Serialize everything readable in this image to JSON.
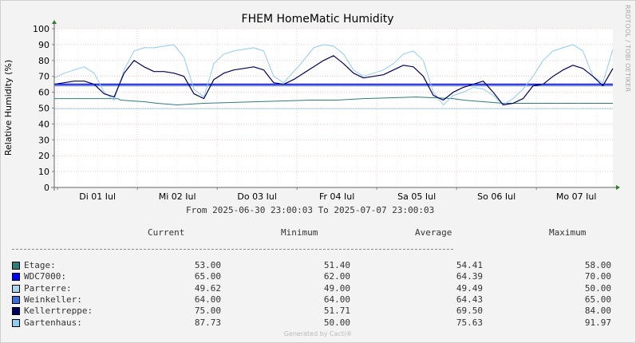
{
  "chart_data": {
    "type": "line",
    "title": "FHEM HomeMatic Humidity",
    "ylabel": "Relative Humidity (%)",
    "xlabel": "",
    "ylim": [
      0,
      100
    ],
    "yticks": [
      0,
      10,
      20,
      30,
      40,
      50,
      60,
      70,
      80,
      90,
      100
    ],
    "xlim": [
      "2025-06-30 23:00",
      "2025-07-07 23:00"
    ],
    "day_labels": [
      {
        "t": "2025-07-01 12:00",
        "label": "Di 01 Jul"
      },
      {
        "t": "2025-07-02 12:00",
        "label": "Mi 02 Jul"
      },
      {
        "t": "2025-07-03 12:00",
        "label": "Do 03 Jul"
      },
      {
        "t": "2025-07-04 12:00",
        "label": "Fr 04 Jul"
      },
      {
        "t": "2025-07-05 12:00",
        "label": "Sa 05 Jul"
      },
      {
        "t": "2025-07-06 12:00",
        "label": "So 06 Jul"
      },
      {
        "t": "2025-07-07 12:00",
        "label": "Mo 07 Jul"
      }
    ],
    "grid": true,
    "series": [
      {
        "name": "Etage",
        "color": "#2e7d78",
        "x": [
          "2025-06-30 23:00",
          "2025-07-01 18:00",
          "2025-07-01 19:00",
          "2025-07-02 02:00",
          "2025-07-02 06:00",
          "2025-07-02 12:00",
          "2025-07-02 20:00",
          "2025-07-03 12:00",
          "2025-07-04 04:00",
          "2025-07-04 12:00",
          "2025-07-04 20:00",
          "2025-07-05 12:00",
          "2025-07-05 23:00",
          "2025-07-06 02:00",
          "2025-07-06 08:00",
          "2025-07-06 14:00",
          "2025-07-07 00:00",
          "2025-07-07 16:00",
          "2025-07-07 23:00"
        ],
        "y": [
          56,
          56,
          55,
          54,
          53,
          52,
          53,
          54,
          55,
          55,
          56,
          57,
          56,
          55,
          54,
          53,
          53,
          53,
          53
        ]
      },
      {
        "name": "WDC7000:",
        "color": "#0000ff",
        "x": [
          "2025-06-30 23:00",
          "2025-07-07 23:00"
        ],
        "y": [
          65,
          65
        ]
      },
      {
        "name": "Parterre",
        "color": "#a8d4ee",
        "x": [
          "2025-06-30 23:00",
          "2025-07-07 23:00"
        ],
        "y": [
          49.6,
          49.6
        ]
      },
      {
        "name": "Weinkeller",
        "color": "#3c6fd6",
        "x": [
          "2025-06-30 23:00",
          "2025-07-07 23:00"
        ],
        "y": [
          64,
          64
        ]
      },
      {
        "name": "Kellertreppe",
        "color": "#00005e",
        "x": [
          "2025-06-30 23:00",
          "2025-07-01 02:00",
          "2025-07-01 05:00",
          "2025-07-01 08:00",
          "2025-07-01 11:00",
          "2025-07-01 14:00",
          "2025-07-01 17:00",
          "2025-07-01 20:00",
          "2025-07-01 23:00",
          "2025-07-02 02:00",
          "2025-07-02 05:00",
          "2025-07-02 08:00",
          "2025-07-02 11:00",
          "2025-07-02 14:00",
          "2025-07-02 17:00",
          "2025-07-02 20:00",
          "2025-07-02 23:00",
          "2025-07-03 02:00",
          "2025-07-03 05:00",
          "2025-07-03 08:00",
          "2025-07-03 11:00",
          "2025-07-03 14:00",
          "2025-07-03 17:00",
          "2025-07-03 20:00",
          "2025-07-03 23:00",
          "2025-07-04 02:00",
          "2025-07-04 05:00",
          "2025-07-04 08:00",
          "2025-07-04 11:00",
          "2025-07-04 14:00",
          "2025-07-04 17:00",
          "2025-07-04 20:00",
          "2025-07-04 23:00",
          "2025-07-05 02:00",
          "2025-07-05 05:00",
          "2025-07-05 08:00",
          "2025-07-05 11:00",
          "2025-07-05 14:00",
          "2025-07-05 17:00",
          "2025-07-05 20:00",
          "2025-07-05 23:00",
          "2025-07-06 02:00",
          "2025-07-06 05:00",
          "2025-07-06 08:00",
          "2025-07-06 11:00",
          "2025-07-06 14:00",
          "2025-07-06 17:00",
          "2025-07-06 20:00",
          "2025-07-06 23:00",
          "2025-07-07 02:00",
          "2025-07-07 05:00",
          "2025-07-07 08:00",
          "2025-07-07 11:00",
          "2025-07-07 14:00",
          "2025-07-07 17:00",
          "2025-07-07 20:00",
          "2025-07-07 23:00"
        ],
        "y": [
          65,
          66,
          67,
          67,
          65,
          59,
          57,
          72,
          80,
          76,
          73,
          73,
          72,
          70,
          59,
          56,
          68,
          72,
          74,
          75,
          76,
          74,
          66,
          65,
          68,
          72,
          76,
          80,
          83,
          78,
          72,
          69,
          70,
          71,
          74,
          77,
          76,
          70,
          58,
          55,
          60,
          63,
          65,
          67,
          60,
          52,
          53,
          56,
          64,
          65,
          70,
          74,
          77,
          75,
          70,
          64,
          75
        ]
      },
      {
        "name": "Gartenhaus",
        "color": "#8ecbf5",
        "x": [
          "2025-06-30 23:00",
          "2025-07-01 02:00",
          "2025-07-01 05:00",
          "2025-07-01 08:00",
          "2025-07-01 11:00",
          "2025-07-01 14:00",
          "2025-07-01 17:00",
          "2025-07-01 20:00",
          "2025-07-01 23:00",
          "2025-07-02 02:00",
          "2025-07-02 05:00",
          "2025-07-02 08:00",
          "2025-07-02 11:00",
          "2025-07-02 14:00",
          "2025-07-02 17:00",
          "2025-07-02 20:00",
          "2025-07-02 23:00",
          "2025-07-03 02:00",
          "2025-07-03 05:00",
          "2025-07-03 08:00",
          "2025-07-03 11:00",
          "2025-07-03 14:00",
          "2025-07-03 17:00",
          "2025-07-03 20:00",
          "2025-07-03 23:00",
          "2025-07-04 02:00",
          "2025-07-04 05:00",
          "2025-07-04 08:00",
          "2025-07-04 11:00",
          "2025-07-04 14:00",
          "2025-07-04 17:00",
          "2025-07-04 20:00",
          "2025-07-04 23:00",
          "2025-07-05 02:00",
          "2025-07-05 05:00",
          "2025-07-05 08:00",
          "2025-07-05 11:00",
          "2025-07-05 14:00",
          "2025-07-05 17:00",
          "2025-07-05 20:00",
          "2025-07-05 23:00",
          "2025-07-06 02:00",
          "2025-07-06 05:00",
          "2025-07-06 08:00",
          "2025-07-06 11:00",
          "2025-07-06 14:00",
          "2025-07-06 17:00",
          "2025-07-06 20:00",
          "2025-07-06 23:00",
          "2025-07-07 02:00",
          "2025-07-07 05:00",
          "2025-07-07 08:00",
          "2025-07-07 11:00",
          "2025-07-07 14:00",
          "2025-07-07 17:00",
          "2025-07-07 20:00",
          "2025-07-07 23:00"
        ],
        "y": [
          69,
          72,
          74,
          76,
          72,
          60,
          55,
          74,
          86,
          88,
          88,
          89,
          90,
          82,
          62,
          57,
          78,
          84,
          86,
          87,
          88,
          86,
          70,
          66,
          73,
          80,
          88,
          90,
          89,
          84,
          74,
          70,
          72,
          74,
          78,
          84,
          86,
          80,
          60,
          52,
          58,
          60,
          63,
          62,
          58,
          52,
          56,
          62,
          70,
          80,
          86,
          88,
          90,
          86,
          70,
          66,
          87
        ]
      }
    ]
  },
  "stats": {
    "range_text": "From 2025-06-30 23:00:03 To 2025-07-07 23:00:03",
    "headers": [
      "Current",
      "Minimum",
      "Average",
      "Maximum"
    ],
    "rows": [
      {
        "name": "Etage:",
        "color": "#2e7d78",
        "current": "53.00",
        "minimum": "51.40",
        "average": "54.41",
        "maximum": "58.00"
      },
      {
        "name": "WDC7000:",
        "color": "#0000ff",
        "current": "65.00",
        "minimum": "62.00",
        "average": "64.39",
        "maximum": "70.00"
      },
      {
        "name": "Parterre:",
        "color": "#a8d4ee",
        "current": "49.62",
        "minimum": "49.00",
        "average": "49.49",
        "maximum": "50.00"
      },
      {
        "name": "Weinkeller:",
        "color": "#3c6fd6",
        "current": "64.00",
        "minimum": "64.00",
        "average": "64.43",
        "maximum": "65.00"
      },
      {
        "name": "Kellertreppe:",
        "color": "#00005e",
        "current": "75.00",
        "minimum": "51.71",
        "average": "69.50",
        "maximum": "84.00"
      },
      {
        "name": "Gartenhaus:",
        "color": "#8ecbf5",
        "current": "87.73",
        "minimum": "50.00",
        "average": "75.63",
        "maximum": "91.97"
      }
    ]
  },
  "footer": "Generated by Cacti®",
  "side_label": "RRDTOOL / TOBI OETIKER"
}
